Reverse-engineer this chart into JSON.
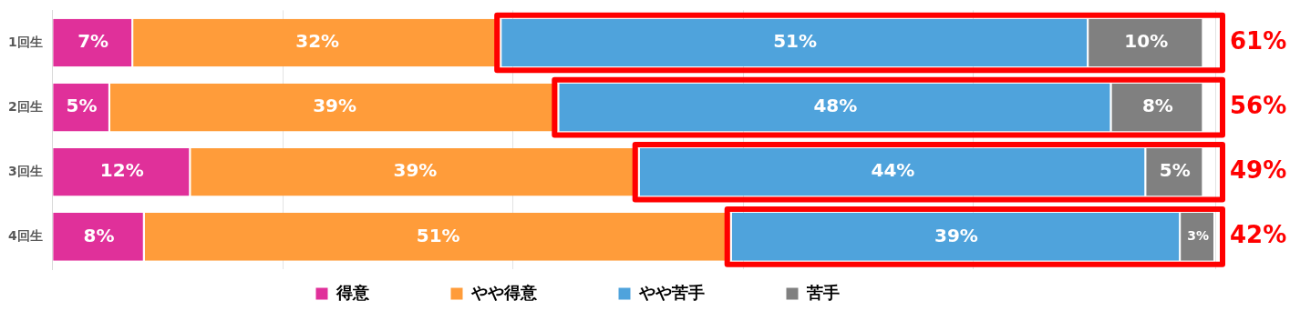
{
  "chart_data": {
    "type": "bar",
    "orientation": "horizontal",
    "stacked": true,
    "categories": [
      "1回生",
      "2回生",
      "3回生",
      "4回生"
    ],
    "series": [
      {
        "name": "得意",
        "color": "#e0309a",
        "values": [
          7,
          5,
          12,
          8
        ],
        "value_labels": [
          "7%",
          "5%",
          "12%",
          "8%"
        ]
      },
      {
        "name": "やや得意",
        "color": "#ff9c3a",
        "values": [
          32,
          39,
          39,
          51
        ],
        "value_labels": [
          "32%",
          "39%",
          "39%",
          "51%"
        ]
      },
      {
        "name": "やや苦手",
        "color": "#4fa3dc",
        "values": [
          51,
          48,
          44,
          39
        ],
        "value_labels": [
          "51%",
          "48%",
          "44%",
          "39%"
        ]
      },
      {
        "name": "苦手",
        "color": "#808080",
        "values": [
          10,
          8,
          5,
          3
        ],
        "value_labels": [
          "10%",
          "8%",
          "5%",
          "3%"
        ]
      }
    ],
    "tick_labels": "y",
    "grid": "x",
    "legend": "bottom",
    "annotations": [
      "61%",
      "56%",
      "49%",
      "42%"
    ]
  }
}
